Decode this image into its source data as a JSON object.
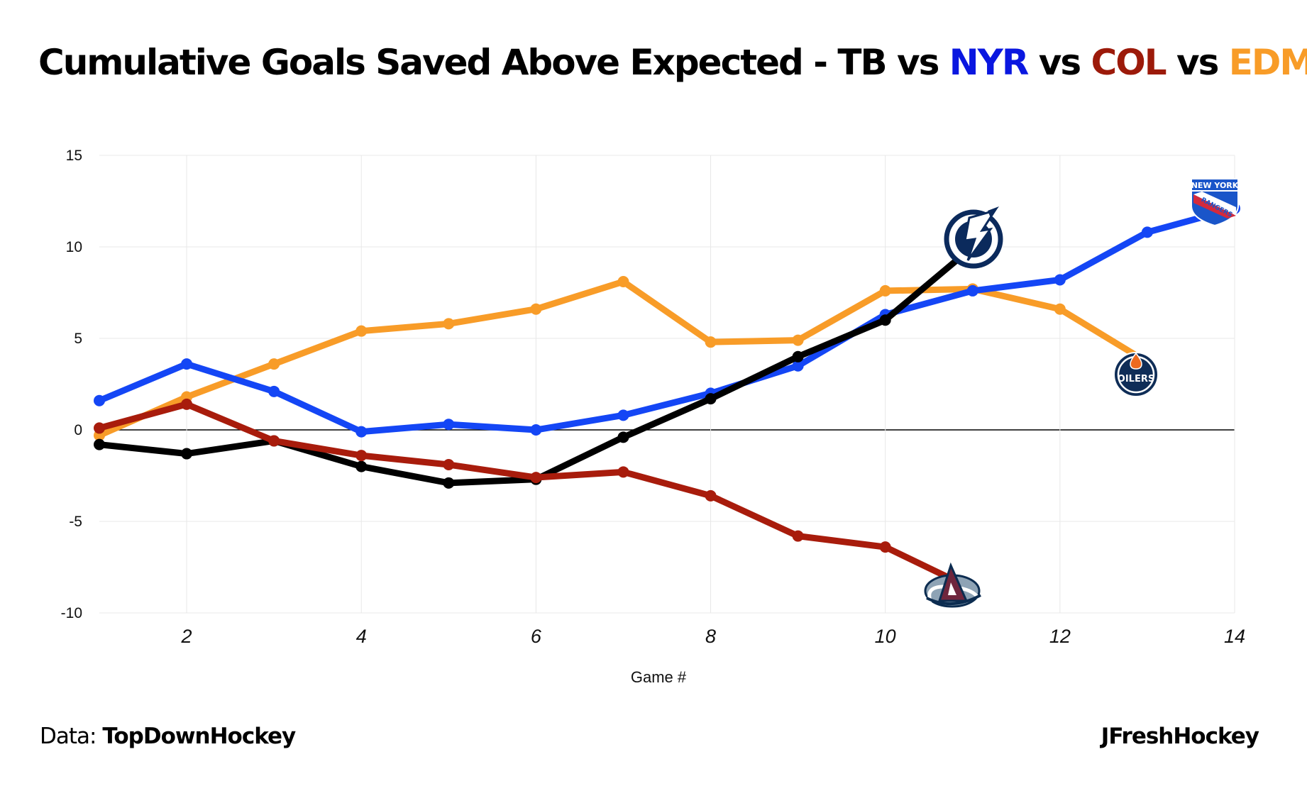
{
  "header": {
    "title_prefix": "Cumulative Goals Saved Above Expected - TB vs ",
    "team_nyr": "NYR",
    "vs1": " vs ",
    "team_col": "COL",
    "vs2": " vs ",
    "team_edm": "EDM"
  },
  "footer": {
    "data_label": "Data: ",
    "data_source": "TopDownHockey",
    "credit": "JFreshHockey"
  },
  "logos": {
    "nyr_line1": "NEW YORK",
    "nyr_line2": "RANGERS",
    "edm_text": "OILERS"
  },
  "colors": {
    "TB": "#000000",
    "NYR": "#1446f5",
    "COL": "#a81c0c",
    "EDM": "#f89c28",
    "title_nyr": "#0a17e0",
    "title_col": "#9c1a0a",
    "title_edm": "#f89c28"
  },
  "chart_data": {
    "type": "line",
    "title": "Cumulative Goals Saved Above Expected - TB vs NYR vs COL vs EDM",
    "xlabel": "Game #",
    "ylabel": "",
    "xlim": [
      1,
      14
    ],
    "ylim": [
      -10,
      15
    ],
    "xticks": [
      2,
      4,
      6,
      8,
      10,
      12,
      14
    ],
    "yticks": [
      15,
      10,
      5,
      0,
      -5,
      -10
    ],
    "grid": true,
    "zero_line": true,
    "series": [
      {
        "name": "TB",
        "x": [
          1,
          2,
          3,
          4,
          5,
          6,
          7,
          8,
          9,
          10,
          11
        ],
        "values": [
          -0.8,
          -1.3,
          -0.6,
          -2.0,
          -2.9,
          -2.7,
          -0.4,
          1.7,
          4.0,
          6.0,
          10.0
        ]
      },
      {
        "name": "NYR",
        "x": [
          1,
          2,
          3,
          4,
          5,
          6,
          7,
          8,
          9,
          10,
          11,
          12,
          13,
          14
        ],
        "values": [
          1.6,
          3.6,
          2.1,
          -0.1,
          0.3,
          0.0,
          0.8,
          2.0,
          3.5,
          6.3,
          7.6,
          8.2,
          10.8,
          12.1
        ]
      },
      {
        "name": "COL",
        "x": [
          1,
          2,
          3,
          4,
          5,
          6,
          7,
          8,
          9,
          10,
          11
        ],
        "values": [
          0.1,
          1.4,
          -0.6,
          -1.4,
          -1.9,
          -2.6,
          -2.3,
          -3.6,
          -5.8,
          -6.4,
          -8.7
        ]
      },
      {
        "name": "EDM",
        "x": [
          1,
          2,
          3,
          4,
          5,
          6,
          7,
          8,
          9,
          10,
          11,
          12,
          13
        ],
        "values": [
          -0.3,
          1.8,
          3.6,
          5.4,
          5.8,
          6.6,
          8.1,
          4.8,
          4.9,
          7.6,
          7.7,
          6.6,
          3.7
        ]
      }
    ]
  }
}
